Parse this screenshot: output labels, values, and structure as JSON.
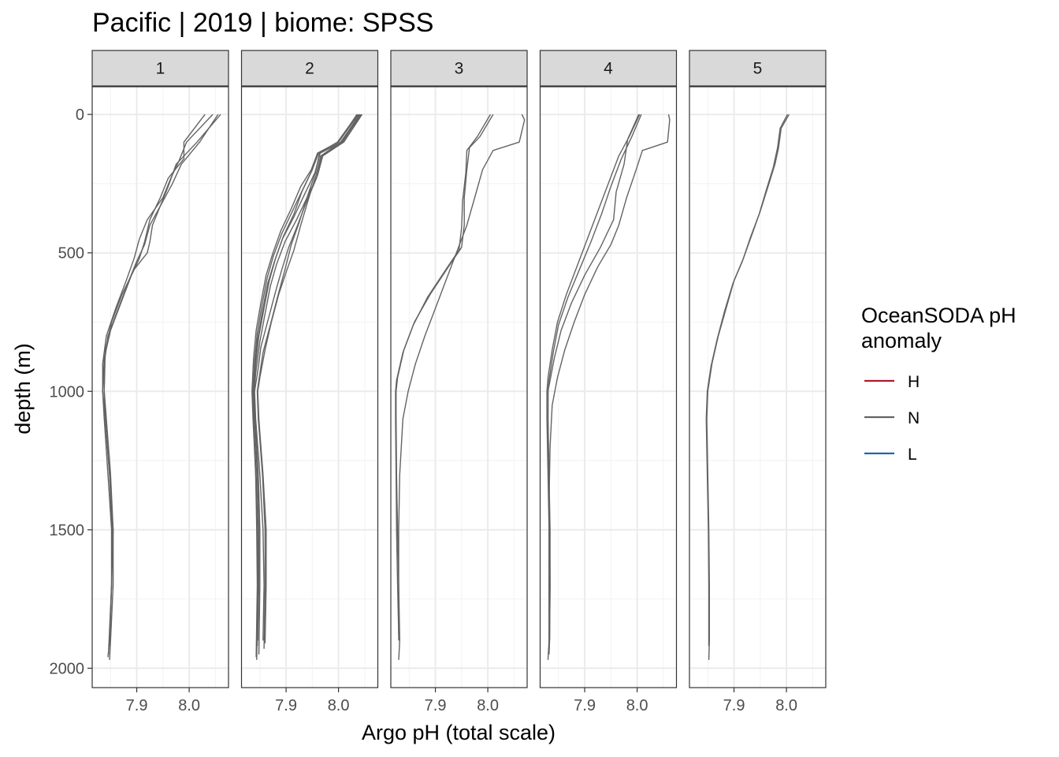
{
  "chart_data": {
    "type": "line",
    "title": "Pacific | 2019 | biome: SPSS",
    "xlabel": "Argo pH (total scale)",
    "ylabel": "depth (m)",
    "xlim": [
      7.815,
      8.075
    ],
    "ylim": [
      2070,
      -100
    ],
    "x_ticks": [
      7.9,
      8.0
    ],
    "x_tick_labels": [
      "7.9",
      "8.0"
    ],
    "y_ticks": [
      0,
      500,
      1000,
      1500,
      2000
    ],
    "y_tick_labels": [
      "0",
      "500",
      "1000",
      "1500",
      "2000"
    ],
    "y_reversed": true,
    "grid": true,
    "facets": [
      "1",
      "2",
      "3",
      "4",
      "5"
    ],
    "legend": {
      "title_lines": [
        "OceanSODA pH",
        "anomaly"
      ],
      "position": "right",
      "entries": [
        {
          "label": "H",
          "color": "#b2182b"
        },
        {
          "label": "N",
          "color": "#636363"
        },
        {
          "label": "L",
          "color": "#2166ac"
        }
      ]
    },
    "series_color": "#636363",
    "panels": [
      {
        "facet": "1",
        "profiles": [
          {
            "depth": [
              0,
              100,
              170,
              230,
              300,
              380,
              450,
              520,
              600,
              700,
              800,
              900,
              1000,
              1100,
              1300,
              1500,
              1700,
              1900,
              1970
            ],
            "ph": [
              8.045,
              7.995,
              7.98,
              7.965,
              7.95,
              7.92,
              7.905,
              7.895,
              7.88,
              7.86,
              7.842,
              7.835,
              7.835,
              7.84,
              7.848,
              7.855,
              7.855,
              7.85,
              7.848
            ]
          },
          {
            "depth": [
              0,
              100,
              180,
              250,
              320,
              400,
              470,
              530,
              600,
              700,
              800,
              900,
              1000,
              1100,
              1300,
              1500,
              1700,
              1900,
              1960
            ],
            "ph": [
              8.055,
              8.02,
              7.985,
              7.968,
              7.948,
              7.925,
              7.915,
              7.9,
              7.885,
              7.865,
              7.845,
              7.838,
              7.838,
              7.842,
              7.85,
              7.855,
              7.852,
              7.848,
              7.845
            ]
          },
          {
            "depth": [
              0,
              100,
              160,
              230,
              300,
              380,
              460,
              520,
              580,
              680,
              780,
              880,
              1000,
              1100,
              1300,
              1500,
              1700,
              1920
            ],
            "ph": [
              8.03,
              7.99,
              7.99,
              7.96,
              7.945,
              7.925,
              7.915,
              7.905,
              7.89,
              7.87,
              7.85,
              7.838,
              7.835,
              7.838,
              7.845,
              7.852,
              7.852,
              7.848
            ]
          },
          {
            "depth": [
              0,
              100,
              180,
              260,
              330,
              400,
              460,
              500,
              560,
              650,
              750,
              850,
              1000,
              1100,
              1300,
              1500,
              1700,
              1950
            ],
            "ph": [
              8.06,
              8.015,
              7.975,
              7.96,
              7.945,
              7.93,
              7.925,
              7.92,
              7.895,
              7.872,
              7.852,
              7.84,
              7.838,
              7.84,
              7.848,
              7.853,
              7.852,
              7.846
            ]
          }
        ]
      },
      {
        "facet": "2",
        "profiles": [
          {
            "depth": [
              0,
              100,
              140,
              200,
              280,
              360,
              440,
              520,
              600,
              700,
              800,
              900,
              1000,
              1100,
              1300,
              1500,
              1700,
              1900
            ],
            "ph": [
              8.035,
              8.0,
              7.96,
              7.95,
              7.93,
              7.915,
              7.895,
              7.88,
              7.868,
              7.858,
              7.848,
              7.842,
              7.838,
              7.84,
              7.845,
              7.848,
              7.848,
              7.846
            ]
          },
          {
            "depth": [
              0,
              100,
              140,
              210,
              290,
              370,
              450,
              530,
              610,
              710,
              810,
              910,
              1000,
              1100,
              1300,
              1500,
              1700,
              1920
            ],
            "ph": [
              8.04,
              8.005,
              7.965,
              7.955,
              7.935,
              7.915,
              7.893,
              7.878,
              7.865,
              7.855,
              7.846,
              7.84,
              7.836,
              7.838,
              7.843,
              7.846,
              7.847,
              7.845
            ]
          },
          {
            "depth": [
              0,
              100,
              150,
              220,
              300,
              380,
              460,
              540,
              620,
              720,
              820,
              920,
              1000,
              1100,
              1300,
              1500,
              1700,
              1950
            ],
            "ph": [
              8.045,
              8.01,
              7.97,
              7.96,
              7.94,
              7.92,
              7.898,
              7.882,
              7.87,
              7.86,
              7.85,
              7.843,
              7.839,
              7.841,
              7.847,
              7.85,
              7.85,
              7.848
            ]
          },
          {
            "depth": [
              0,
              100,
              140,
              200,
              260,
              340,
              420,
              500,
              580,
              680,
              780,
              880,
              1000,
              1100,
              1300,
              1500,
              1700,
              1970
            ],
            "ph": [
              8.038,
              8.0,
              7.96,
              7.948,
              7.928,
              7.91,
              7.89,
              7.875,
              7.862,
              7.852,
              7.843,
              7.838,
              7.835,
              7.837,
              7.842,
              7.845,
              7.846,
              7.844
            ]
          },
          {
            "depth": [
              0,
              100,
              150,
              230,
              320,
              400,
              480,
              560,
              640,
              740,
              840,
              940,
              1000,
              1100,
              1300,
              1500,
              1700,
              1900
            ],
            "ph": [
              8.042,
              8.008,
              7.968,
              7.958,
              7.938,
              7.922,
              7.905,
              7.892,
              7.88,
              7.866,
              7.852,
              7.845,
              7.84,
              7.842,
              7.85,
              7.856,
              7.858,
              7.856
            ]
          },
          {
            "depth": [
              0,
              100,
              140,
              210,
              300,
              390,
              470,
              560,
              650,
              760,
              860,
              960,
              1000,
              1100,
              1300,
              1500,
              1700,
              1930
            ],
            "ph": [
              8.044,
              8.006,
              7.964,
              7.956,
              7.94,
              7.925,
              7.91,
              7.898,
              7.885,
              7.87,
              7.856,
              7.848,
              7.845,
              7.847,
              7.855,
              7.86,
              7.86,
              7.858
            ]
          },
          {
            "depth": [
              0,
              100,
              140,
              200,
              270,
              350,
              430,
              510,
              590,
              690,
              790,
              890,
              1000,
              1100,
              1300,
              1500,
              1700,
              1960
            ],
            "ph": [
              8.036,
              7.998,
              7.962,
              7.95,
              7.932,
              7.912,
              7.892,
              7.876,
              7.864,
              7.854,
              7.845,
              7.84,
              7.837,
              7.838,
              7.842,
              7.844,
              7.845,
              7.843
            ]
          },
          {
            "depth": [
              0,
              100,
              150,
              220,
              310,
              400,
              490,
              570,
              650,
              750,
              850,
              950,
              1000,
              1100,
              1300,
              1500,
              1700,
              1910
            ],
            "ph": [
              8.041,
              8.004,
              7.966,
              7.957,
              7.942,
              7.928,
              7.915,
              7.9,
              7.886,
              7.872,
              7.86,
              7.85,
              7.846,
              7.848,
              7.856,
              7.862,
              7.862,
              7.86
            ]
          }
        ]
      },
      {
        "facet": "3",
        "profiles": [
          {
            "depth": [
              0,
              80,
              120,
              200,
              300,
              400,
              480,
              550,
              650,
              750,
              850,
              950,
              1000,
              1100,
              1300,
              1500,
              1700,
              1900,
              1970
            ],
            "ph": [
              8.01,
              7.985,
              7.965,
              7.96,
              7.955,
              7.955,
              7.95,
              7.925,
              7.89,
              7.86,
              7.84,
              7.828,
              7.825,
              7.825,
              7.826,
              7.828,
              7.83,
              7.832,
              7.83
            ]
          },
          {
            "depth": [
              0,
              80,
              130,
              210,
              310,
              410,
              490,
              560,
              660,
              760,
              860,
              960,
              1000,
              1100,
              1300,
              1500,
              1700,
              1880
            ],
            "ph": [
              8.005,
              7.98,
              7.96,
              7.958,
              7.952,
              7.95,
              7.945,
              7.92,
              7.885,
              7.858,
              7.838,
              7.826,
              7.824,
              7.824,
              7.825,
              7.826,
              7.828,
              7.83
            ]
          },
          {
            "depth": [
              0,
              20,
              100,
              130,
              200,
              300,
              400,
              500,
              600,
              700,
              800,
              900,
              1000,
              1100,
              1300,
              1500,
              1700,
              1900
            ],
            "ph": [
              8.065,
              8.07,
              8.06,
              8.01,
              7.99,
              7.975,
              7.96,
              7.94,
              7.92,
              7.9,
              7.88,
              7.862,
              7.848,
              7.838,
              7.832,
              7.83,
              7.83,
              7.83
            ]
          }
        ]
      },
      {
        "facet": "4",
        "profiles": [
          {
            "depth": [
              0,
              80,
              150,
              250,
              350,
              450,
              550,
              650,
              750,
              850,
              950,
              1000,
              1100,
              1300,
              1500,
              1700,
              1900,
              1970
            ],
            "ph": [
              8.005,
              7.985,
              7.965,
              7.945,
              7.925,
              7.905,
              7.885,
              7.865,
              7.848,
              7.838,
              7.83,
              7.828,
              7.828,
              7.83,
              7.832,
              7.832,
              7.832,
              7.83
            ]
          },
          {
            "depth": [
              0,
              80,
              160,
              260,
              360,
              460,
              560,
              660,
              760,
              860,
              960,
              1000,
              1100,
              1300,
              1500,
              1700,
              1900
            ],
            "ph": [
              8.008,
              7.99,
              7.97,
              7.95,
              7.932,
              7.912,
              7.89,
              7.868,
              7.85,
              7.84,
              7.832,
              7.83,
              7.83,
              7.832,
              7.834,
              7.834,
              7.833
            ]
          },
          {
            "depth": [
              0,
              90,
              180,
              280,
              380,
              480,
              580,
              680,
              780,
              880,
              980,
              1000,
              1100,
              1300,
              1500,
              1700,
              1900,
              1950
            ],
            "ph": [
              8.003,
              7.982,
              7.975,
              7.96,
              7.955,
              7.93,
              7.9,
              7.875,
              7.855,
              7.842,
              7.832,
              7.83,
              7.83,
              7.831,
              7.833,
              7.834,
              7.833,
              7.832
            ]
          },
          {
            "depth": [
              0,
              20,
              100,
              130,
              200,
              300,
              400,
              470,
              550,
              650,
              750,
              850,
              950,
              1050,
              1200,
              1400,
              1600,
              1800,
              1950
            ],
            "ph": [
              8.06,
              8.062,
              8.058,
              8.01,
              7.998,
              7.98,
              7.965,
              7.95,
              7.925,
              7.9,
              7.88,
              7.862,
              7.848,
              7.838,
              7.834,
              7.832,
              7.832,
              7.832,
              7.832
            ]
          }
        ]
      },
      {
        "facet": "5",
        "profiles": [
          {
            "depth": [
              0,
              50,
              120,
              180,
              260,
              350,
              430,
              520,
              600,
              700,
              800,
              900,
              1000,
              1100,
              1300,
              1500,
              1700,
              1900,
              1970
            ],
            "ph": [
              8.005,
              7.99,
              7.985,
              7.978,
              7.965,
              7.95,
              7.935,
              7.918,
              7.9,
              7.885,
              7.87,
              7.858,
              7.85,
              7.848,
              7.85,
              7.852,
              7.853,
              7.853,
              7.852
            ]
          },
          {
            "depth": [
              0,
              50,
              120,
              190,
              270,
              360,
              440,
              530,
              610,
              710,
              810,
              910,
              1000,
              1100,
              1300,
              1500,
              1700,
              1920
            ],
            "ph": [
              8.002,
              7.988,
              7.983,
              7.975,
              7.962,
              7.948,
              7.932,
              7.916,
              7.898,
              7.882,
              7.868,
              7.856,
              7.849,
              7.847,
              7.849,
              7.851,
              7.852,
              7.852
            ]
          }
        ]
      }
    ]
  }
}
